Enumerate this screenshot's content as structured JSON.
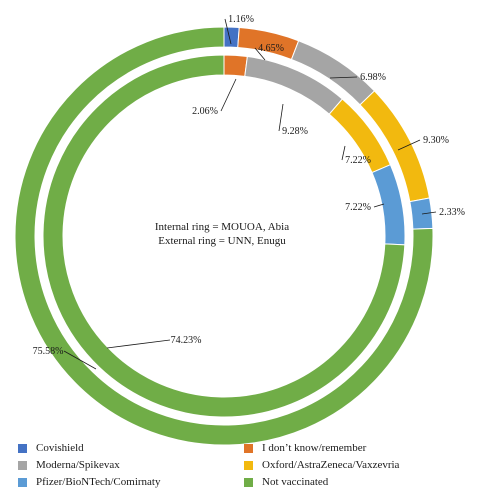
{
  "chart_data": {
    "type": "donut",
    "center_text": [
      "Internal ring = MOUOA, Abia",
      "External ring = UNN, Enugu"
    ],
    "categories": [
      "Covishield",
      "I don’t know/remember",
      "Moderna/Spikevax",
      "Oxford/AstraZeneca/Vaxzevria",
      "Pfizer/BioNTech/Comirnaty",
      "Not vaccinated"
    ],
    "colors": [
      "#4472c4",
      "#e07428",
      "#a5a5a5",
      "#f2b90f",
      "#5b9bd5",
      "#70ad47"
    ],
    "series": [
      {
        "ring": "external",
        "values": [
          1.16,
          4.65,
          6.98,
          9.3,
          2.33,
          75.58
        ],
        "labels": [
          "1.16%",
          "4.65%",
          "6.98%",
          "9.30%",
          "2.33%",
          "75.58%"
        ]
      },
      {
        "ring": "internal",
        "values": [
          0,
          2.06,
          9.28,
          7.22,
          7.22,
          74.23
        ],
        "labels": [
          "",
          "2.06%",
          "9.28%",
          "7.22%",
          "7.22%",
          "74.23%"
        ]
      }
    ],
    "legend": [
      "Covishield",
      "I don’t know/remember",
      "Moderna/Spikevax",
      "Oxford/AstraZeneca/Vaxzevria",
      "Pfizer/BioNTech/Comirnaty",
      "Not vaccinated"
    ]
  }
}
